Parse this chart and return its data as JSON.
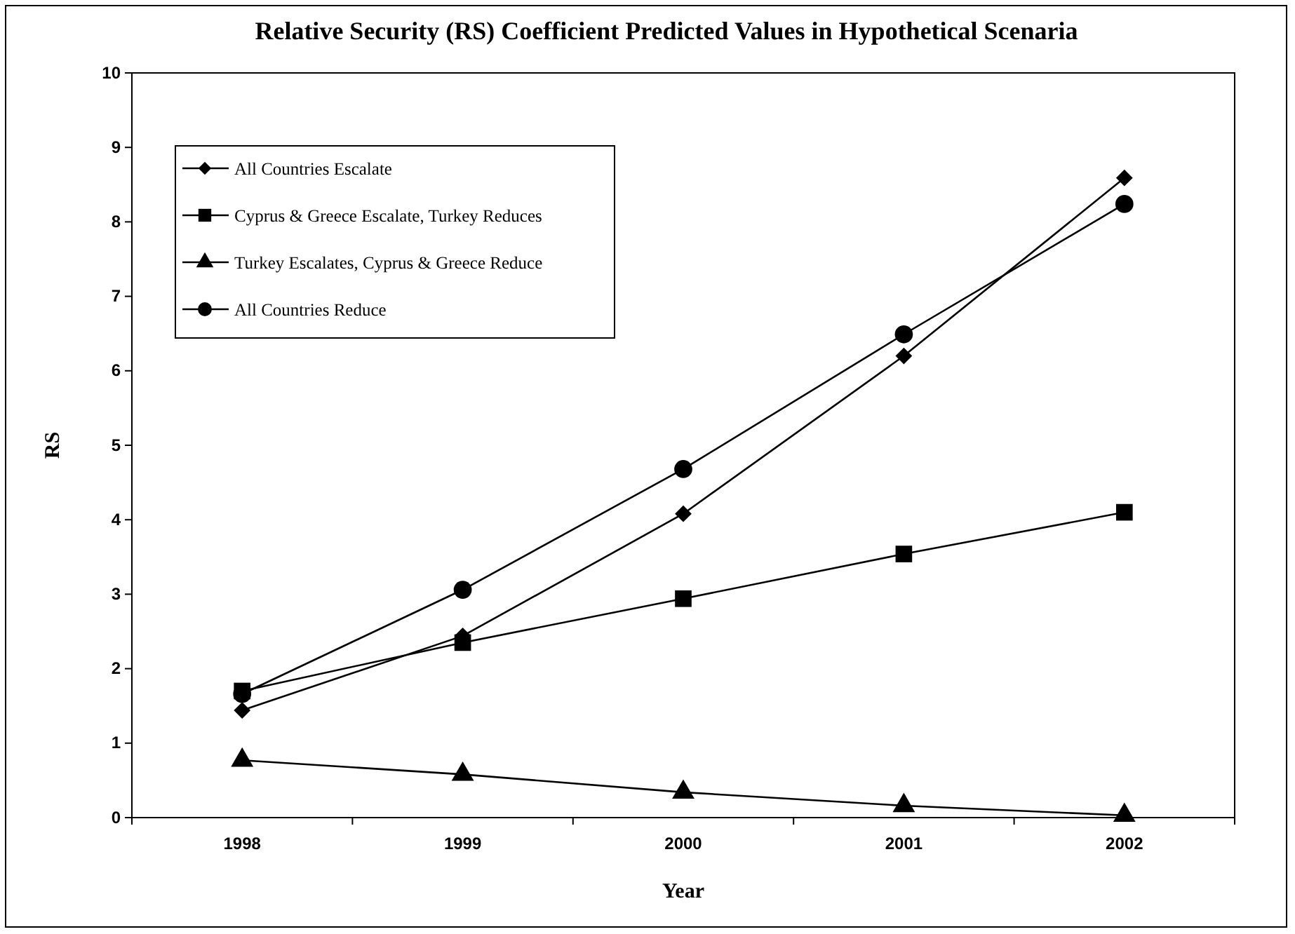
{
  "chart_data": {
    "type": "line",
    "title": "Relative Security (RS) Coefficient Predicted Values in Hypothetical Scenaria",
    "xlabel": "Year",
    "ylabel": "RS",
    "categories": [
      "1998",
      "1999",
      "2000",
      "2001",
      "2002"
    ],
    "series": [
      {
        "name": "All Countries Escalate",
        "color": "#000000",
        "marker": "diamond",
        "values": [
          1.44,
          2.44,
          4.08,
          6.2,
          8.59
        ]
      },
      {
        "name": "Cyprus & Greece Escalate, Turkey Reduces",
        "color": "#000000",
        "marker": "square",
        "values": [
          1.7,
          2.35,
          2.94,
          3.54,
          4.1
        ]
      },
      {
        "name": "Turkey Escalates, Cyprus & Greece Reduce",
        "color": "#000000",
        "marker": "triangle",
        "values": [
          0.77,
          0.58,
          0.34,
          0.16,
          0.03
        ]
      },
      {
        "name": "All Countries Reduce",
        "color": "#000000",
        "marker": "circle",
        "values": [
          1.66,
          3.06,
          4.68,
          6.49,
          8.24
        ]
      }
    ],
    "ylim": [
      0,
      10
    ],
    "yticks": [
      0,
      1,
      2,
      3,
      4,
      5,
      6,
      7,
      8,
      9,
      10
    ],
    "grid": false,
    "legend": "top left",
    "line_style": "solid"
  }
}
